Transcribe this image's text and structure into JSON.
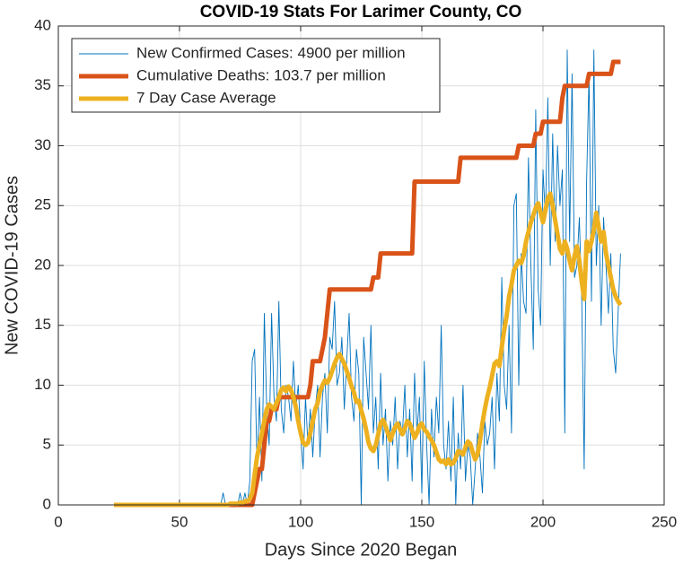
{
  "chart_data": {
    "type": "line",
    "title": "COVID-19 Stats For Larimer County, CO",
    "xlabel": "Days Since 2020 Began",
    "ylabel": "New COVID-19 Cases",
    "xlim": [
      0,
      250
    ],
    "xticks": [
      0,
      50,
      100,
      150,
      200,
      250
    ],
    "ylim": [
      0,
      40
    ],
    "yticks": [
      0,
      5,
      10,
      15,
      20,
      25,
      30,
      35,
      40
    ],
    "grid": true,
    "legend": "upper-left",
    "x": [
      23,
      24,
      25,
      26,
      27,
      28,
      29,
      30,
      31,
      32,
      33,
      34,
      35,
      36,
      37,
      38,
      39,
      40,
      41,
      42,
      43,
      44,
      45,
      46,
      47,
      48,
      49,
      50,
      51,
      52,
      53,
      54,
      55,
      56,
      57,
      58,
      59,
      60,
      61,
      62,
      63,
      64,
      65,
      66,
      67,
      68,
      69,
      70,
      71,
      72,
      73,
      74,
      75,
      76,
      77,
      78,
      79,
      80,
      81,
      82,
      83,
      84,
      85,
      86,
      87,
      88,
      89,
      90,
      91,
      92,
      93,
      94,
      95,
      96,
      97,
      98,
      99,
      100,
      101,
      102,
      103,
      104,
      105,
      106,
      107,
      108,
      109,
      110,
      111,
      112,
      113,
      114,
      115,
      116,
      117,
      118,
      119,
      120,
      121,
      122,
      123,
      124,
      125,
      126,
      127,
      128,
      129,
      130,
      131,
      132,
      133,
      134,
      135,
      136,
      137,
      138,
      139,
      140,
      141,
      142,
      143,
      144,
      145,
      146,
      147,
      148,
      149,
      150,
      151,
      152,
      153,
      154,
      155,
      156,
      157,
      158,
      159,
      160,
      161,
      162,
      163,
      164,
      165,
      166,
      167,
      168,
      169,
      170,
      171,
      172,
      173,
      174,
      175,
      176,
      177,
      178,
      179,
      180,
      181,
      182,
      183,
      184,
      185,
      186,
      187,
      188,
      189,
      190,
      191,
      192,
      193,
      194,
      195,
      196,
      197,
      198,
      199,
      200,
      201,
      202,
      203,
      204,
      205,
      206,
      207,
      208,
      209,
      210,
      211,
      212,
      213,
      214,
      215,
      216,
      217,
      218,
      219,
      220,
      221,
      222,
      223,
      224,
      225,
      226,
      227,
      228,
      229,
      230,
      231,
      232
    ],
    "series": [
      {
        "name": "New Confirmed Cases: 4900 per million",
        "color": "#0072BD",
        "width": 0.9,
        "values": [
          0,
          0,
          0,
          0,
          0,
          0,
          0,
          0,
          0,
          0,
          0,
          0,
          0,
          0,
          0,
          0,
          0,
          0,
          0,
          0,
          0,
          0,
          0,
          0,
          0,
          0,
          0,
          0,
          0,
          0,
          0,
          0,
          0,
          0,
          0,
          0,
          0,
          0,
          0,
          0,
          0,
          0,
          0,
          0,
          0,
          1,
          0,
          0,
          0,
          0,
          0,
          0,
          1,
          0,
          1,
          0,
          2,
          12,
          13,
          3,
          9,
          2,
          16,
          8,
          5,
          16,
          9,
          7,
          17,
          8,
          6,
          10,
          9,
          7,
          12,
          8,
          10,
          6,
          3,
          9,
          5,
          8,
          4,
          8,
          10,
          4,
          9,
          11,
          6,
          14,
          13,
          17,
          10,
          11,
          14,
          8,
          12,
          16,
          9,
          7,
          13,
          11,
          0,
          14,
          11,
          8,
          15,
          6,
          9,
          3,
          11,
          5,
          8,
          2,
          7,
          5,
          9,
          3,
          7,
          6,
          10,
          4,
          8,
          2,
          11,
          6,
          9,
          1,
          12,
          5,
          0,
          8,
          4,
          9,
          6,
          15,
          5,
          3,
          7,
          2,
          9,
          0,
          6,
          3,
          10,
          2,
          5,
          4,
          0,
          3,
          6,
          4,
          1,
          7,
          5,
          6,
          9,
          3,
          11,
          7,
          19,
          10,
          8,
          15,
          6,
          25,
          26,
          10,
          21,
          17,
          16,
          29,
          20,
          13,
          33,
          18,
          15,
          28,
          24,
          34,
          20,
          31,
          22,
          30,
          25,
          28,
          6,
          38,
          22,
          36,
          19,
          20,
          24,
          17,
          3,
          27,
          36,
          17,
          38,
          20,
          25,
          15,
          24,
          20,
          16,
          21,
          13,
          11,
          16,
          21
        ]
      },
      {
        "name": "Cumulative Deaths: 103.7 per million",
        "color": "#D95319",
        "width": 5,
        "values": [
          0,
          0,
          0,
          0,
          0,
          0,
          0,
          0,
          0,
          0,
          0,
          0,
          0,
          0,
          0,
          0,
          0,
          0,
          0,
          0,
          0,
          0,
          0,
          0,
          0,
          0,
          0,
          0,
          0,
          0,
          0,
          0,
          0,
          0,
          0,
          0,
          0,
          0,
          0,
          0,
          0,
          0,
          0,
          0,
          0,
          0,
          0,
          0,
          0,
          0,
          0,
          0,
          0,
          0,
          0,
          0,
          0,
          0,
          1,
          2,
          3,
          3,
          5,
          7,
          7,
          8,
          8,
          8,
          9,
          9,
          9,
          9,
          9,
          9,
          9,
          9,
          9,
          9,
          9,
          9,
          9,
          10,
          12,
          12,
          12,
          12,
          13,
          14,
          16,
          18,
          18,
          18,
          18,
          18,
          18,
          18,
          18,
          18,
          18,
          18,
          18,
          18,
          18,
          18,
          18,
          18,
          18,
          19,
          19,
          19,
          21,
          21,
          21,
          21,
          21,
          21,
          21,
          21,
          21,
          21,
          21,
          21,
          21,
          21,
          27,
          27,
          27,
          27,
          27,
          27,
          27,
          27,
          27,
          27,
          27,
          27,
          27,
          27,
          27,
          27,
          27,
          27,
          27,
          29,
          29,
          29,
          29,
          29,
          29,
          29,
          29,
          29,
          29,
          29,
          29,
          29,
          29,
          29,
          29,
          29,
          29,
          29,
          29,
          29,
          29,
          29,
          29,
          30,
          30,
          30,
          30,
          30,
          30,
          30,
          31,
          31,
          31,
          32,
          32,
          32,
          32,
          32,
          32,
          32,
          32,
          34,
          35,
          35,
          35,
          35,
          35,
          35,
          35,
          35,
          35,
          35,
          36,
          36,
          36,
          36,
          36,
          36,
          36,
          36,
          36,
          36,
          37,
          37,
          37,
          37
        ]
      },
      {
        "name": "7 Day Case Average",
        "color": "#EDB120",
        "width": 5,
        "values": [
          0,
          0,
          0,
          0,
          0,
          0,
          0,
          0,
          0,
          0,
          0,
          0,
          0,
          0,
          0,
          0,
          0,
          0,
          0,
          0,
          0,
          0,
          0,
          0,
          0,
          0,
          0,
          0,
          0,
          0,
          0,
          0,
          0,
          0,
          0,
          0,
          0,
          0,
          0,
          0,
          0,
          0,
          0,
          0,
          0,
          0,
          0,
          0,
          0.1,
          0.1,
          0.1,
          0.1,
          0.2,
          0.2,
          0.3,
          0.3,
          0.5,
          1,
          2.5,
          4,
          5,
          6,
          7,
          8,
          8.4,
          8.2,
          8,
          8.5,
          9,
          9.6,
          9.8,
          9.5,
          9.9,
          9.6,
          9,
          8.2,
          7,
          6,
          5.2,
          5,
          5.2,
          6,
          7,
          8,
          8.5,
          9.5,
          10,
          10.4,
          10.2,
          10.6,
          11.2,
          11.8,
          12.3,
          12.6,
          12.2,
          11.8,
          11.2,
          10.6,
          9.9,
          9.4,
          8.6,
          8.7,
          7.9,
          7.2,
          6.3,
          5.2,
          4.7,
          4.5,
          5,
          5.9,
          6.8,
          7.1,
          6.6,
          6,
          5.4,
          6,
          6.5,
          6.8,
          6.3,
          5.9,
          6.4,
          7,
          6.8,
          6.2,
          5.6,
          6,
          6.6,
          6.8,
          6.3,
          6.1,
          5.7,
          5.4,
          5,
          4.4,
          3.8,
          3.6,
          3.7,
          3.4,
          3.8,
          3.4,
          3.5,
          3.9,
          4.5,
          4.4,
          4.2,
          4.8,
          5.3,
          5.1,
          4.4,
          3.8,
          4.2,
          5.4,
          6.8,
          8,
          9,
          9.8,
          10.8,
          11.8,
          12,
          11.6,
          13.2,
          14.6,
          15.8,
          17.4,
          18.4,
          19.6,
          20,
          20.4,
          20.2,
          20.8,
          22,
          22.8,
          23.6,
          24.2,
          24.8,
          25.2,
          24.4,
          23.6,
          24.6,
          25.6,
          26,
          25,
          23.8,
          22.6,
          21.4,
          21,
          22,
          21.4,
          20.4,
          19.6,
          20.8,
          21.6,
          20.4,
          18.6,
          17.2,
          22,
          21.2,
          22,
          23,
          24.4,
          23.2,
          22,
          22.8,
          21,
          20,
          19,
          18,
          17.4,
          17,
          16.7
        ]
      }
    ]
  }
}
